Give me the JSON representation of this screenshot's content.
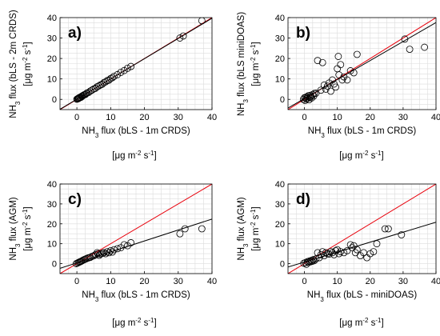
{
  "figure": {
    "background": "#ffffff",
    "grid_color": "#dcdcdc",
    "marker_color": "#000000",
    "one_to_one_color": "#e8000b",
    "fit_color": "#000000"
  },
  "chart_data": [
    {
      "type": "scatter",
      "panel_label": "a)",
      "xlabel": "NH3 flux (bLS - 1m CRDS)",
      "ylabel": "NH3 flux (bLS - 2m CRDS)",
      "xunit": "[μg m-2 s-1]",
      "yunit": "[μg m-2 s-1]",
      "xlim": [
        -5,
        40
      ],
      "ylim": [
        -5,
        40
      ],
      "xticks": [
        0,
        10,
        20,
        30,
        40
      ],
      "yticks": [
        0,
        10,
        20,
        30,
        40
      ],
      "grid": true,
      "fit_line": {
        "slope": 0.99,
        "intercept": 0.1
      },
      "points": [
        [
          0.0,
          0.1
        ],
        [
          0.2,
          0.3
        ],
        [
          0.4,
          0.5
        ],
        [
          0.5,
          0.4
        ],
        [
          0.6,
          0.7
        ],
        [
          0.8,
          0.9
        ],
        [
          1.0,
          1.1
        ],
        [
          1.2,
          1.0
        ],
        [
          1.4,
          1.5
        ],
        [
          1.5,
          1.4
        ],
        [
          1.7,
          1.8
        ],
        [
          2.0,
          2.1
        ],
        [
          2.2,
          2.3
        ],
        [
          2.5,
          2.4
        ],
        [
          2.8,
          2.9
        ],
        [
          3.0,
          3.1
        ],
        [
          3.5,
          3.4
        ],
        [
          4.0,
          4.1
        ],
        [
          4.5,
          4.6
        ],
        [
          5.0,
          5.1
        ],
        [
          5.5,
          5.4
        ],
        [
          6.0,
          6.2
        ],
        [
          6.5,
          6.6
        ],
        [
          7.0,
          7.1
        ],
        [
          7.5,
          7.4
        ],
        [
          8.0,
          8.2
        ],
        [
          8.5,
          8.6
        ],
        [
          9.0,
          9.2
        ],
        [
          9.5,
          9.4
        ],
        [
          10.0,
          10.2
        ],
        [
          10.5,
          10.6
        ],
        [
          11.0,
          11.3
        ],
        [
          12.0,
          12.1
        ],
        [
          13.0,
          13.2
        ],
        [
          14.0,
          14.1
        ],
        [
          15.0,
          15.2
        ],
        [
          16.0,
          16.1
        ],
        [
          30.5,
          30.0
        ],
        [
          31.5,
          31.0
        ],
        [
          37.0,
          38.5
        ]
      ]
    },
    {
      "type": "scatter",
      "panel_label": "b)",
      "xlabel": "NH3 flux (bLS - 1m CRDS)",
      "ylabel": "NH3 flux (bLS miniDOAS)",
      "xunit": "[μg m-2 s-1]",
      "yunit": "[μg m-2 s-1]",
      "xlim": [
        -5,
        40
      ],
      "ylim": [
        -5,
        40
      ],
      "xticks": [
        0,
        10,
        20,
        30,
        40
      ],
      "yticks": [
        0,
        10,
        20,
        30,
        40
      ],
      "grid": true,
      "fit_line": {
        "slope": 0.93,
        "intercept": 0.4
      },
      "points": [
        [
          -0.3,
          0.0
        ],
        [
          0.0,
          0.8
        ],
        [
          0.2,
          -0.5
        ],
        [
          0.4,
          1.0
        ],
        [
          0.6,
          0.2
        ],
        [
          0.8,
          1.3
        ],
        [
          1.0,
          0.5
        ],
        [
          1.2,
          1.8
        ],
        [
          1.4,
          -0.2
        ],
        [
          1.6,
          0.9
        ],
        [
          1.8,
          2.0
        ],
        [
          2.0,
          1.4
        ],
        [
          2.2,
          0.7
        ],
        [
          2.5,
          2.4
        ],
        [
          2.8,
          1.6
        ],
        [
          3.0,
          2.9
        ],
        [
          3.5,
          3.0
        ],
        [
          4.0,
          19.0
        ],
        [
          5.0,
          4.5
        ],
        [
          5.5,
          18.0
        ],
        [
          6.0,
          7.0
        ],
        [
          6.5,
          5.0
        ],
        [
          7.0,
          6.5
        ],
        [
          7.5,
          8.0
        ],
        [
          8.0,
          4.0
        ],
        [
          8.5,
          9.5
        ],
        [
          9.0,
          7.5
        ],
        [
          9.5,
          6.0
        ],
        [
          10.0,
          15.0
        ],
        [
          10.3,
          21.0
        ],
        [
          10.5,
          12.0
        ],
        [
          11.0,
          17.0
        ],
        [
          11.5,
          9.5
        ],
        [
          12.0,
          11.0
        ],
        [
          13.0,
          9.5
        ],
        [
          14.0,
          14.0
        ],
        [
          15.0,
          13.0
        ],
        [
          16.0,
          22.0
        ],
        [
          30.5,
          29.5
        ],
        [
          32.0,
          24.5
        ],
        [
          36.5,
          25.5
        ]
      ]
    },
    {
      "type": "scatter",
      "panel_label": "c)",
      "xlabel": "NH3 flux (bLS - 1m CRDS)",
      "ylabel": "NH3 flux (AGM)",
      "xunit": "[μg m-2 s-1]",
      "yunit": "[μg m-2 s-1]",
      "xlim": [
        -5,
        40
      ],
      "ylim": [
        -5,
        40
      ],
      "xticks": [
        0,
        10,
        20,
        30,
        40
      ],
      "yticks": [
        0,
        10,
        20,
        30,
        40
      ],
      "grid": true,
      "fit_line": {
        "slope": 0.55,
        "intercept": 0.4
      },
      "points": [
        [
          -0.2,
          0.0
        ],
        [
          0.2,
          0.3
        ],
        [
          0.5,
          0.6
        ],
        [
          0.8,
          0.8
        ],
        [
          1.0,
          1.0
        ],
        [
          1.3,
          1.2
        ],
        [
          1.6,
          1.5
        ],
        [
          2.0,
          1.9
        ],
        [
          2.4,
          2.2
        ],
        [
          2.8,
          2.5
        ],
        [
          3.2,
          2.8
        ],
        [
          3.6,
          3.0
        ],
        [
          4.0,
          3.2
        ],
        [
          4.5,
          3.7
        ],
        [
          5.0,
          4.0
        ],
        [
          5.5,
          4.5
        ],
        [
          6.0,
          5.5
        ],
        [
          6.3,
          5.0
        ],
        [
          6.6,
          4.2
        ],
        [
          7.0,
          4.8
        ],
        [
          7.5,
          5.2
        ],
        [
          8.0,
          5.5
        ],
        [
          8.5,
          5.0
        ],
        [
          9.0,
          6.0
        ],
        [
          9.5,
          5.5
        ],
        [
          10.0,
          6.5
        ],
        [
          10.5,
          5.8
        ],
        [
          11.0,
          7.0
        ],
        [
          12.0,
          7.5
        ],
        [
          13.0,
          8.0
        ],
        [
          14.0,
          9.5
        ],
        [
          15.0,
          9.0
        ],
        [
          16.0,
          10.5
        ],
        [
          30.5,
          15.0
        ],
        [
          32.0,
          17.5
        ],
        [
          37.0,
          17.5
        ]
      ]
    },
    {
      "type": "scatter",
      "panel_label": "d)",
      "xlabel": "NH3 flux (bLS - miniDOAS)",
      "ylabel": "NH3 flux (AGM)",
      "xunit": "[μg m-2 s-1]",
      "yunit": "[μg m-2 s-1]",
      "xlim": [
        -5,
        40
      ],
      "ylim": [
        -5,
        40
      ],
      "xticks": [
        0,
        10,
        20,
        30,
        40
      ],
      "yticks": [
        0,
        10,
        20,
        30,
        40
      ],
      "grid": true,
      "fit_line": {
        "slope": 0.5,
        "intercept": 0.8
      },
      "points": [
        [
          -0.2,
          0.2
        ],
        [
          0.3,
          0.5
        ],
        [
          0.6,
          -0.3
        ],
        [
          0.9,
          1.0
        ],
        [
          1.2,
          0.6
        ],
        [
          1.5,
          1.3
        ],
        [
          1.8,
          0.9
        ],
        [
          2.1,
          1.6
        ],
        [
          2.4,
          1.2
        ],
        [
          2.7,
          2.0
        ],
        [
          3.0,
          1.5
        ],
        [
          3.5,
          2.4
        ],
        [
          4.0,
          5.5
        ],
        [
          4.5,
          3.0
        ],
        [
          5.0,
          4.5
        ],
        [
          5.5,
          6.0
        ],
        [
          6.0,
          4.0
        ],
        [
          6.5,
          5.5
        ],
        [
          7.0,
          5.0
        ],
        [
          7.5,
          4.8
        ],
        [
          8.0,
          6.0
        ],
        [
          8.5,
          5.5
        ],
        [
          9.0,
          4.5
        ],
        [
          9.5,
          6.5
        ],
        [
          10.0,
          7.0
        ],
        [
          10.5,
          5.0
        ],
        [
          11.0,
          6.0
        ],
        [
          12.0,
          5.5
        ],
        [
          13.0,
          6.5
        ],
        [
          14.0,
          9.5
        ],
        [
          14.5,
          8.0
        ],
        [
          15.0,
          9.0
        ],
        [
          15.5,
          5.5
        ],
        [
          16.0,
          7.0
        ],
        [
          17.0,
          4.0
        ],
        [
          18.0,
          5.5
        ],
        [
          19.0,
          3.0
        ],
        [
          20.0,
          5.0
        ],
        [
          21.0,
          6.0
        ],
        [
          22.0,
          10.0
        ],
        [
          24.5,
          17.5
        ],
        [
          25.5,
          17.5
        ],
        [
          29.5,
          14.5
        ]
      ]
    }
  ]
}
